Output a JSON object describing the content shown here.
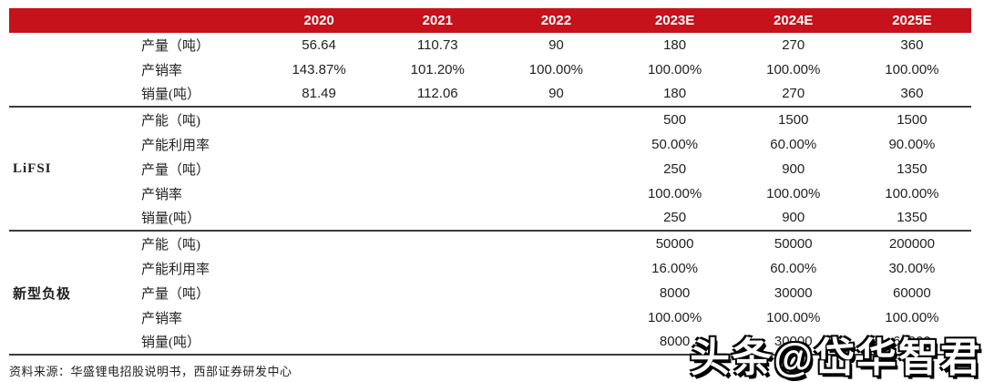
{
  "table": {
    "years": [
      "2020",
      "2021",
      "2022",
      "2023E",
      "2024E",
      "2025E"
    ],
    "groups": [
      {
        "name": "",
        "rows": [
          {
            "label": "产量（吨）",
            "values": [
              "56.64",
              "110.73",
              "90",
              "180",
              "270",
              "360"
            ]
          },
          {
            "label": "产销率",
            "values": [
              "143.87%",
              "101.20%",
              "100.00%",
              "100.00%",
              "100.00%",
              "100.00%"
            ]
          },
          {
            "label": "销量(吨）",
            "values": [
              "81.49",
              "112.06",
              "90",
              "180",
              "270",
              "360"
            ]
          }
        ]
      },
      {
        "name": "LiFSI",
        "rows": [
          {
            "label": "产能（吨)",
            "values": [
              "",
              "",
              "",
              "500",
              "1500",
              "1500"
            ]
          },
          {
            "label": "产能利用率",
            "values": [
              "",
              "",
              "",
              "50.00%",
              "60.00%",
              "90.00%"
            ]
          },
          {
            "label": "产量（吨）",
            "values": [
              "",
              "",
              "",
              "250",
              "900",
              "1350"
            ]
          },
          {
            "label": "产销率",
            "values": [
              "",
              "",
              "",
              "100.00%",
              "100.00%",
              "100.00%"
            ]
          },
          {
            "label": "销量(吨）",
            "values": [
              "",
              "",
              "",
              "250",
              "900",
              "1350"
            ]
          }
        ]
      },
      {
        "name": "新型负极",
        "rows": [
          {
            "label": "产能（吨)",
            "values": [
              "",
              "",
              "",
              "50000",
              "50000",
              "200000"
            ]
          },
          {
            "label": "产能利用率",
            "values": [
              "",
              "",
              "",
              "16.00%",
              "60.00%",
              "30.00%"
            ]
          },
          {
            "label": "产量（吨）",
            "values": [
              "",
              "",
              "",
              "8000",
              "30000",
              "60000"
            ]
          },
          {
            "label": "产销率",
            "values": [
              "",
              "",
              "",
              "100.00%",
              "100.00%",
              "100.00%"
            ]
          },
          {
            "label": "销量(吨）",
            "values": [
              "",
              "",
              "",
              "8000",
              "30000",
              "60000"
            ]
          }
        ]
      }
    ],
    "source_note": "资料来源：华盛锂电招股说明书，西部证券研发中心"
  },
  "watermark": {
    "text": "头条@岱华智君"
  },
  "colors": {
    "header_red": "#C5121B",
    "divider_dark": "#3d3d3d"
  }
}
